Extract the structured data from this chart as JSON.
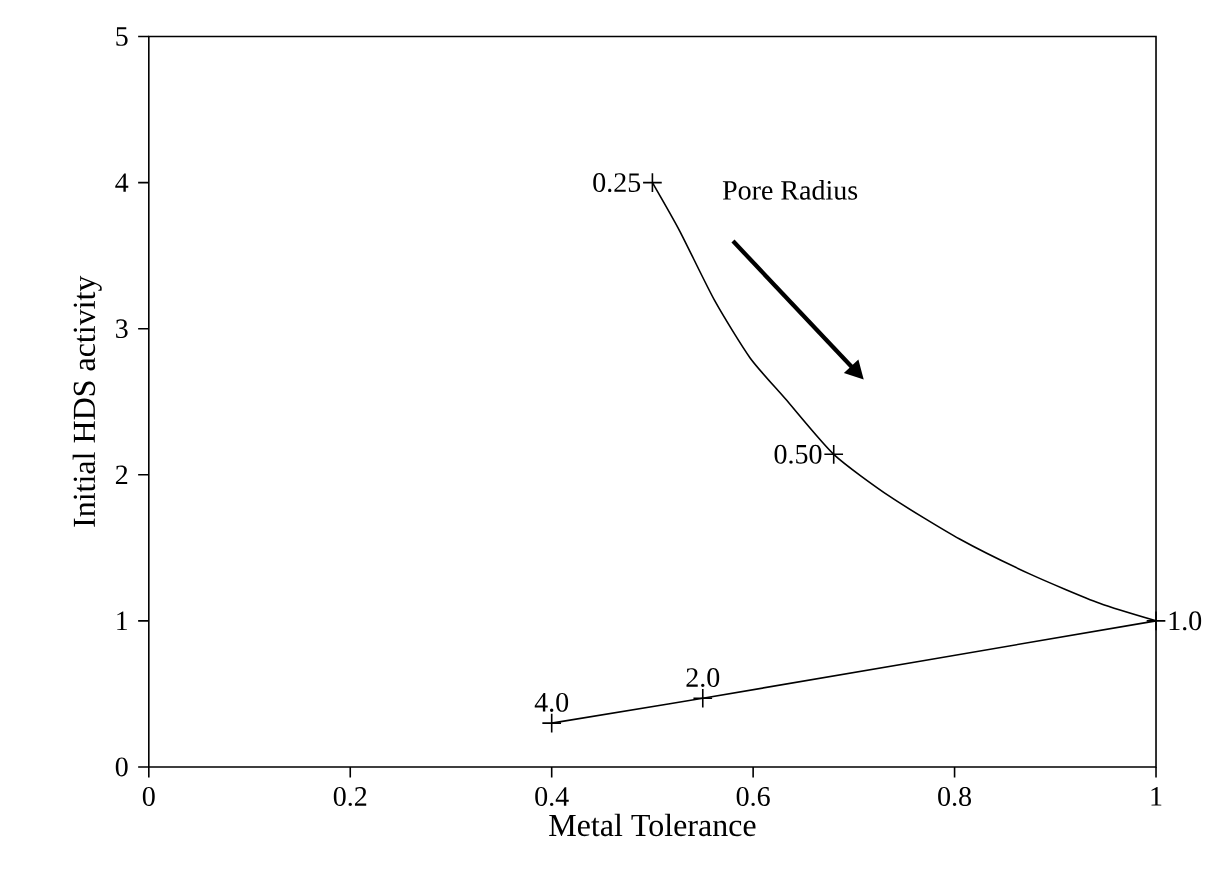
{
  "chart_data": {
    "type": "line",
    "xlabel": "Metal Tolerance",
    "ylabel": "Initial HDS activity",
    "xlim": [
      0,
      1
    ],
    "ylim": [
      0,
      5
    ],
    "xticks": [
      0,
      0.2,
      0.4,
      0.6,
      0.8,
      1
    ],
    "yticks": [
      0,
      1,
      2,
      3,
      4,
      5
    ],
    "grid": false,
    "series": [
      {
        "color": "#000000",
        "marker": "none",
        "x": [
          0.5,
          0.527,
          0.562,
          0.597,
          0.632,
          0.68,
          0.736,
          0.805,
          0.875,
          0.944,
          1.0
        ],
        "values": [
          4.0,
          3.67,
          3.19,
          2.8,
          2.52,
          2.14,
          1.85,
          1.56,
          1.32,
          1.12,
          1.0
        ]
      },
      {
        "color": "#000000",
        "marker": "none",
        "x": [
          0.4,
          0.55,
          1.0
        ],
        "values": [
          0.3,
          0.47,
          1.0
        ]
      },
      {
        "type": "scatter",
        "color": "#000000",
        "marker": "cross",
        "x": [
          0.5,
          0.68,
          1.0,
          0.55,
          0.4
        ],
        "values": [
          4.0,
          2.14,
          1.0,
          0.47,
          0.3
        ]
      }
    ],
    "annotations": [
      {
        "text": "0.25",
        "x": 0.5,
        "y": 4.0
      },
      {
        "text": "0.50",
        "x": 0.68,
        "y": 2.14
      },
      {
        "text": "1.0",
        "x": 1.0,
        "y": 1.0
      },
      {
        "text": "2.0",
        "x": 0.55,
        "y": 0.47
      },
      {
        "text": "4.0",
        "x": 0.4,
        "y": 0.3
      },
      "Pore Radius"
    ]
  }
}
